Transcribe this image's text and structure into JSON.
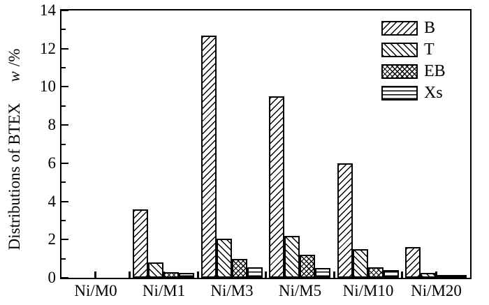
{
  "chart_data": {
    "type": "bar",
    "title": "",
    "ylabel_main": "Distributions of BTEX",
    "ylabel_symbol": "w",
    "ylabel_unit": "/%",
    "ylim": [
      0,
      14
    ],
    "ytick_major_step": 2,
    "ytick_minor_step": 1,
    "grid": false,
    "legend_position": "top-right-inside",
    "axis_color": "#000000",
    "bar_fill": "#ffffff",
    "background": "#ffffff",
    "categories": [
      "Ni/M0",
      "Ni/M1",
      "Ni/M3",
      "Ni/M5",
      "Ni/M10",
      "Ni/M20"
    ],
    "series": [
      {
        "name": "B",
        "pattern": "diag-fwd",
        "values": [
          0,
          3.6,
          12.7,
          9.5,
          6.0,
          1.6
        ]
      },
      {
        "name": "T",
        "pattern": "diag-back",
        "values": [
          0,
          0.8,
          2.05,
          2.2,
          1.5,
          0.25
        ]
      },
      {
        "name": "EB",
        "pattern": "cross",
        "values": [
          0,
          0.3,
          1.0,
          1.2,
          0.55,
          0.1
        ]
      },
      {
        "name": "Xs",
        "pattern": "horiz",
        "values": [
          0,
          0.25,
          0.55,
          0.5,
          0.4,
          0.08
        ]
      }
    ]
  }
}
